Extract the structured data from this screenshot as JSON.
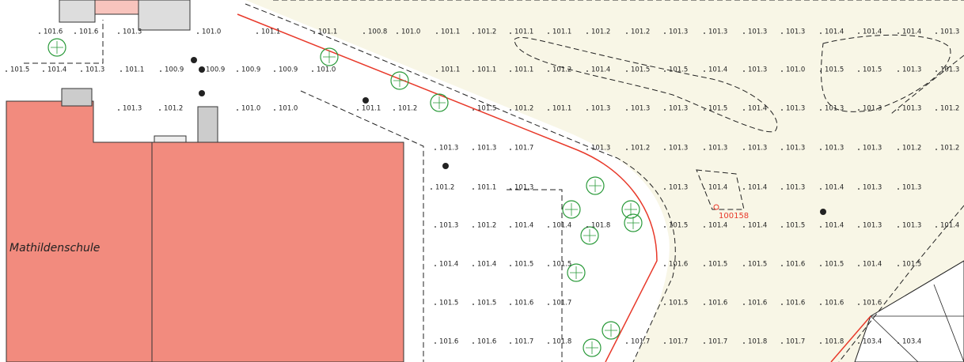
{
  "map": {
    "building_label": "Mathildenschule",
    "point_label": "100158",
    "elevations": [
      [
        "101.6",
        "101.6",
        "101.3",
        "101.0",
        "101.1",
        "101.1",
        "100.8",
        "101.0",
        "101.1",
        "101.2",
        "101.1",
        "101.1",
        "101.2",
        "101.2",
        "101.3",
        "101.3",
        "101.3",
        "101.3",
        "101.4",
        "101.4",
        "101.4",
        "101.3"
      ],
      [
        "101.5",
        "101.4",
        "101.3",
        "101.1",
        "100.9",
        "100.9",
        "100.9",
        "100.9",
        "101.0",
        "101.1",
        "101.1",
        "101.1",
        "101.2",
        "101.4",
        "101.5",
        "101.5",
        "101.4",
        "101.3",
        "101.0",
        "101.5",
        "101.5",
        "101.3",
        "101.3"
      ],
      [
        "101.3",
        "101.2",
        "101.0",
        "101.0",
        "101.1",
        "101.2",
        "101.5",
        "101.2",
        "101.1",
        "101.3",
        "101.3",
        "101.3",
        "101.5",
        "101.4",
        "101.3",
        "101.3",
        "101.3",
        "101.3",
        "101.2"
      ],
      [
        "101.3",
        "101.3",
        "101.7",
        "101.3",
        "101.2",
        "101.3",
        "101.3",
        "101.3",
        "101.3",
        "101.3",
        "101.3",
        "101.2",
        "101.2"
      ],
      [
        "101.2",
        "101.1",
        "101.3",
        "101.3",
        "101.4",
        "101.4",
        "101.3",
        "101.4",
        "101.3",
        "101.3"
      ],
      [
        "101.3",
        "101.2",
        "101.4",
        "101.4",
        "101.8",
        "101.5",
        "101.4",
        "101.4",
        "101.5",
        "101.4",
        "101.3",
        "101.3",
        "101.4"
      ],
      [
        "101.4",
        "101.4",
        "101.5",
        "101.5",
        "101.6",
        "101.5",
        "101.5",
        "101.6",
        "101.5",
        "101.4",
        "101.5"
      ],
      [
        "101.5",
        "101.5",
        "101.6",
        "101.7",
        "101.5",
        "101.6",
        "101.6",
        "101.6",
        "101.6",
        "101.6"
      ],
      [
        "101.6",
        "101.6",
        "101.7",
        "101.8",
        "101.7",
        "101.7",
        "101.7",
        "101.8",
        "101.7",
        "101.8",
        "103.4",
        "103.4"
      ]
    ]
  }
}
